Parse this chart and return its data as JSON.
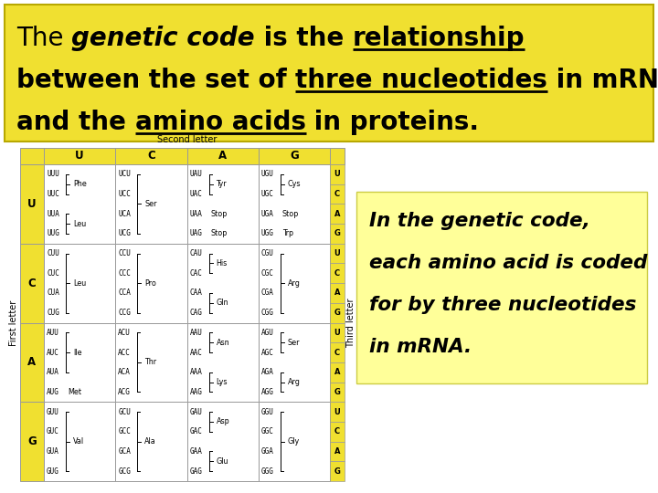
{
  "bg_color": "#ffffff",
  "top_box_color": "#f0e030",
  "sidebar_box_color": "#ffff99",
  "table_yellow": "#f0e030",
  "table_white": "#ffffff",
  "second_letter_label": "Second letter",
  "first_letter_label": "First letter",
  "third_letter_label": "Third letter",
  "col_headers": [
    "U",
    "C",
    "A",
    "G"
  ],
  "row_headers": [
    "U",
    "C",
    "A",
    "G"
  ],
  "sidebar_lines": [
    "In the genetic code,",
    "each amino acid is coded",
    "for by three nucleotides",
    "in mRNA."
  ],
  "cells": [
    [
      {
        "lines": [
          "UUU",
          "UUC",
          "UUA",
          "UUG"
        ],
        "groups": [
          {
            "rows": [
              0,
              1
            ],
            "aa": "Phe"
          },
          {
            "rows": [
              2,
              3
            ],
            "aa": "Leu"
          }
        ]
      },
      {
        "lines": [
          "UCU",
          "UCC",
          "UCA",
          "UCG"
        ],
        "groups": [
          {
            "rows": [
              0,
              1,
              2,
              3
            ],
            "aa": "Ser"
          }
        ]
      },
      {
        "lines": [
          "UAU",
          "UAC",
          "UAA",
          "UAG"
        ],
        "groups": [
          {
            "rows": [
              0,
              1
            ],
            "aa": "Tyr"
          },
          {
            "rows": [
              2
            ],
            "aa": "Stop"
          },
          {
            "rows": [
              3
            ],
            "aa": "Stop"
          }
        ]
      },
      {
        "lines": [
          "UGU",
          "UGC",
          "UGA",
          "UGG"
        ],
        "groups": [
          {
            "rows": [
              0,
              1
            ],
            "aa": "Cys"
          },
          {
            "rows": [
              2
            ],
            "aa": "Stop"
          },
          {
            "rows": [
              3
            ],
            "aa": "Trp"
          }
        ]
      }
    ],
    [
      {
        "lines": [
          "CUU",
          "CUC",
          "CUA",
          "CUG"
        ],
        "groups": [
          {
            "rows": [
              0,
              1,
              2,
              3
            ],
            "aa": "Leu"
          }
        ]
      },
      {
        "lines": [
          "CCU",
          "CCC",
          "CCA",
          "CCG"
        ],
        "groups": [
          {
            "rows": [
              0,
              1,
              2,
              3
            ],
            "aa": "Pro"
          }
        ]
      },
      {
        "lines": [
          "CAU",
          "CAC",
          "CAA",
          "CAG"
        ],
        "groups": [
          {
            "rows": [
              0,
              1
            ],
            "aa": "His"
          },
          {
            "rows": [
              2,
              3
            ],
            "aa": "Gln"
          }
        ]
      },
      {
        "lines": [
          "CGU",
          "CGC",
          "CGA",
          "CGG"
        ],
        "groups": [
          {
            "rows": [
              0,
              1,
              2,
              3
            ],
            "aa": "Arg"
          }
        ]
      }
    ],
    [
      {
        "lines": [
          "AUU",
          "AUC",
          "AUA",
          "AUG"
        ],
        "groups": [
          {
            "rows": [
              0,
              1,
              2
            ],
            "aa": "Ile"
          },
          {
            "rows": [
              3
            ],
            "aa": "Met"
          }
        ]
      },
      {
        "lines": [
          "ACU",
          "ACC",
          "ACA",
          "ACG"
        ],
        "groups": [
          {
            "rows": [
              0,
              1,
              2,
              3
            ],
            "aa": "Thr"
          }
        ]
      },
      {
        "lines": [
          "AAU",
          "AAC",
          "AAA",
          "AAG"
        ],
        "groups": [
          {
            "rows": [
              0,
              1
            ],
            "aa": "Asn"
          },
          {
            "rows": [
              2,
              3
            ],
            "aa": "Lys"
          }
        ]
      },
      {
        "lines": [
          "AGU",
          "AGC",
          "AGA",
          "AGG"
        ],
        "groups": [
          {
            "rows": [
              0,
              1
            ],
            "aa": "Ser"
          },
          {
            "rows": [
              2,
              3
            ],
            "aa": "Arg"
          }
        ]
      }
    ],
    [
      {
        "lines": [
          "GUU",
          "GUC",
          "GUA",
          "GUG"
        ],
        "groups": [
          {
            "rows": [
              0,
              1,
              2,
              3
            ],
            "aa": "Val"
          }
        ]
      },
      {
        "lines": [
          "GCU",
          "GCC",
          "GCA",
          "GCG"
        ],
        "groups": [
          {
            "rows": [
              0,
              1,
              2,
              3
            ],
            "aa": "Ala"
          }
        ]
      },
      {
        "lines": [
          "GAU",
          "GAC",
          "GAA",
          "GAG"
        ],
        "groups": [
          {
            "rows": [
              0,
              1
            ],
            "aa": "Asp"
          },
          {
            "rows": [
              2,
              3
            ],
            "aa": "Glu"
          }
        ]
      },
      {
        "lines": [
          "GGU",
          "GGC",
          "GGA",
          "GGG"
        ],
        "groups": [
          {
            "rows": [
              0,
              1,
              2,
              3
            ],
            "aa": "Gly"
          }
        ]
      }
    ]
  ]
}
